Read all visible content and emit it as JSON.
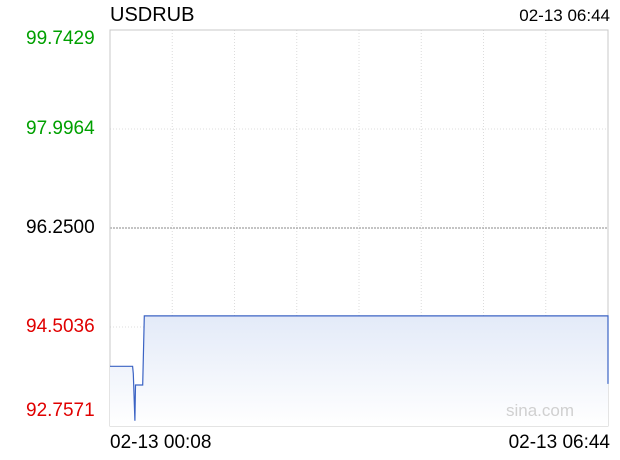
{
  "chart_data": {
    "type": "line",
    "title": "USDRUB",
    "timestamp": "02-13 06:44",
    "yticks": [
      {
        "label": "99.7429",
        "value": 99.7429,
        "color": "#00a000"
      },
      {
        "label": "97.9964",
        "value": 97.9964,
        "color": "#00a000"
      },
      {
        "label": "96.2500",
        "value": 96.25,
        "color": "#000000"
      },
      {
        "label": "94.5036",
        "value": 94.5036,
        "color": "#e00000"
      },
      {
        "label": "92.7571",
        "value": 92.7571,
        "color": "#e00000"
      }
    ],
    "xticks": [
      "02-13 00:08",
      "02-13 06:44"
    ],
    "ylim": [
      92.7571,
      99.7429
    ],
    "reference_value": 96.25,
    "grid": true,
    "watermark": "sina.com",
    "line_color": "#3b63c4",
    "series": [
      {
        "x": [
          0,
          18,
          18.5,
          19.8,
          20.3,
          23,
          26,
          27.3,
          393,
          396,
          396
        ],
        "values": [
          93.81,
          93.81,
          93.68,
          92.85,
          93.48,
          93.48,
          93.48,
          94.7,
          94.7,
          94.7,
          93.5
        ]
      }
    ],
    "x_range": [
      0,
      396
    ]
  }
}
